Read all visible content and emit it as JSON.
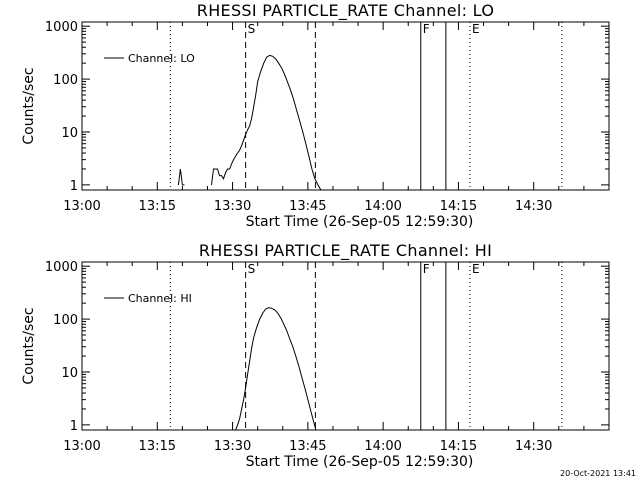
{
  "footer_timestamp": "20-Oct-2021 13:41",
  "chart_data": [
    {
      "type": "line",
      "title": "RHESSI PARTICLE_RATE Channel: LO",
      "xlabel": "Start Time (26-Sep-05 12:59:30)",
      "ylabel": "Counts/sec",
      "yscale": "log",
      "ylim": [
        0.8,
        1200
      ],
      "xlim_minutes": [
        0,
        105
      ],
      "x_tick_minutes": [
        0,
        15,
        30,
        45,
        60,
        75,
        90
      ],
      "x_tick_labels": [
        "13:00",
        "13:15",
        "13:30",
        "13:45",
        "14:00",
        "14:15",
        "14:30"
      ],
      "y_ticks": [
        1,
        10,
        100,
        1000
      ],
      "y_tick_labels": [
        "1",
        "10",
        "100",
        "1000"
      ],
      "legend": "Channel: LO",
      "legend_position": "top-left",
      "series": [
        {
          "name": "Channel: LO",
          "x": [
            19.2,
            19.6,
            20.0,
            20.4,
            25.8,
            26.2,
            26.6,
            27.0,
            27.4,
            27.8,
            28.2,
            28.6,
            29.0,
            29.4,
            29.8,
            30.2,
            30.6,
            31.0,
            31.4,
            31.8,
            32.2,
            32.6,
            33.0,
            33.4,
            33.8,
            34.2,
            34.6,
            35.0,
            35.6,
            36.2,
            36.8,
            37.4,
            38.0,
            38.6,
            39.2,
            39.8,
            40.4,
            41.0,
            41.6,
            42.2,
            42.8,
            43.4,
            44.0,
            44.6,
            45.2,
            45.8,
            46.4,
            47.0,
            47.6
          ],
          "y": [
            1,
            2,
            1,
            1,
            1,
            2,
            2,
            2,
            1.5,
            1.5,
            1.3,
            1.7,
            2,
            2,
            2.5,
            3,
            3.5,
            4,
            4.5,
            5.5,
            7,
            9,
            11,
            13,
            18,
            30,
            50,
            90,
            140,
            200,
            260,
            280,
            270,
            240,
            200,
            160,
            120,
            85,
            60,
            40,
            25,
            16,
            10,
            6,
            3.5,
            2,
            1.3,
            1,
            0.8
          ]
        }
      ],
      "markers": [
        {
          "label": "S",
          "x": 32.6,
          "style": "dashed"
        },
        {
          "label": "",
          "x": 46.5,
          "style": "dashed"
        },
        {
          "label": "F",
          "x": 67.5,
          "style": "solid"
        },
        {
          "label": "",
          "x": 72.5,
          "style": "solid"
        },
        {
          "label": "E",
          "x": 77.3,
          "style": "dotted"
        },
        {
          "label": "",
          "x": 17.6,
          "style": "dotted"
        },
        {
          "label": "",
          "x": 95.6,
          "style": "dotted"
        }
      ]
    },
    {
      "type": "line",
      "title": "RHESSI PARTICLE_RATE Channel: HI",
      "xlabel": "Start Time (26-Sep-05 12:59:30)",
      "ylabel": "Counts/sec",
      "yscale": "log",
      "ylim": [
        0.8,
        1200
      ],
      "xlim_minutes": [
        0,
        105
      ],
      "x_tick_minutes": [
        0,
        15,
        30,
        45,
        60,
        75,
        90
      ],
      "x_tick_labels": [
        "13:00",
        "13:15",
        "13:30",
        "13:45",
        "14:00",
        "14:15",
        "14:30"
      ],
      "y_ticks": [
        1,
        10,
        100,
        1000
      ],
      "y_tick_labels": [
        "1",
        "10",
        "100",
        "1000"
      ],
      "legend": "Channel: HI",
      "legend_position": "top-left",
      "series": [
        {
          "name": "Channel: HI",
          "x": [
            30.6,
            31.0,
            31.4,
            31.8,
            32.2,
            32.6,
            33.0,
            33.4,
            33.8,
            34.2,
            34.8,
            35.4,
            36.0,
            36.6,
            37.2,
            37.8,
            38.4,
            39.0,
            39.6,
            40.2,
            40.8,
            41.4,
            42.0,
            42.6,
            43.2,
            43.8,
            44.4,
            45.0,
            45.6,
            46.2,
            46.6
          ],
          "y": [
            0.8,
            1,
            1.3,
            2,
            3,
            5,
            9,
            16,
            28,
            45,
            70,
            100,
            130,
            155,
            165,
            160,
            150,
            130,
            105,
            80,
            60,
            42,
            30,
            20,
            13,
            8,
            5,
            3,
            1.8,
            1.1,
            0.8
          ]
        }
      ],
      "markers": [
        {
          "label": "S",
          "x": 32.6,
          "style": "dashed"
        },
        {
          "label": "",
          "x": 46.5,
          "style": "dashed"
        },
        {
          "label": "F",
          "x": 67.5,
          "style": "solid"
        },
        {
          "label": "",
          "x": 72.5,
          "style": "solid"
        },
        {
          "label": "E",
          "x": 77.3,
          "style": "dotted"
        },
        {
          "label": "",
          "x": 17.6,
          "style": "dotted"
        },
        {
          "label": "",
          "x": 95.6,
          "style": "dotted"
        }
      ]
    }
  ]
}
